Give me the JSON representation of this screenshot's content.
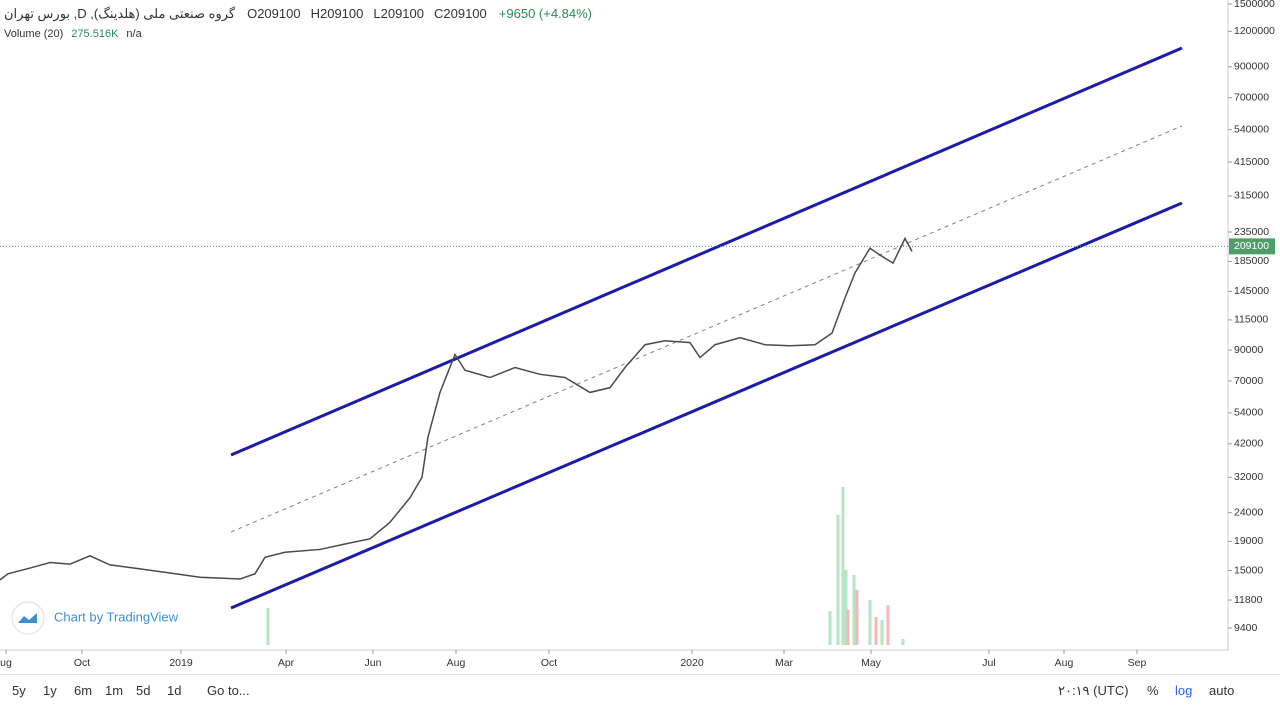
{
  "chart_data": {
    "type": "line",
    "title": "گروه صنعتی ملی (هلدینگ), D, بورس تهران",
    "ohlc": [
      {
        "label": "O",
        "value": 209100
      },
      {
        "label": "H",
        "value": 209100
      },
      {
        "label": "L",
        "value": 209100
      },
      {
        "label": "C",
        "value": 209100
      }
    ],
    "change": "+9650 (+4.84%)",
    "log_scale": true,
    "ylim": [
      7860,
      1549000
    ],
    "yticks": [
      1500000,
      1200000,
      900000,
      700000,
      540000,
      415000,
      315000,
      235000,
      185000,
      145000,
      115000,
      90000,
      70000,
      54000,
      42000,
      32000,
      24000,
      19000,
      15000,
      11800,
      9400
    ],
    "xlim": [
      0,
      307
    ],
    "xticks": [
      {
        "value": 1.5,
        "label": "ug"
      },
      {
        "value": 20.5,
        "label": "Oct"
      },
      {
        "value": 45.25,
        "label": "2019"
      },
      {
        "value": 71.5,
        "label": "Apr"
      },
      {
        "value": 93.25,
        "label": "Jun"
      },
      {
        "value": 114,
        "label": "Aug"
      },
      {
        "value": 137.25,
        "label": "Oct"
      },
      {
        "value": 173,
        "label": "2020"
      },
      {
        "value": 196,
        "label": "Mar"
      },
      {
        "value": 217.75,
        "label": "May"
      },
      {
        "value": 247.25,
        "label": "Jul"
      },
      {
        "value": 266,
        "label": "Aug"
      },
      {
        "value": 284.25,
        "label": "Sep"
      }
    ],
    "series": [
      {
        "name": "Price",
        "color": "#4a4a4a",
        "x": [
          0,
          2,
          7.5,
          12.5,
          17.5,
          22.5,
          27.5,
          35,
          42.5,
          50,
          60,
          63.75,
          66.25,
          71.25,
          80,
          86.25,
          92.5,
          97.5,
          102.5,
          105.5,
          107,
          110,
          113.75,
          116.25,
          122.5,
          128.75,
          135,
          141.25,
          147.5,
          152.5,
          156.25,
          161.25,
          166.25,
          172.5,
          175,
          178.75,
          185,
          191.25,
          197.5,
          203.75,
          208,
          211.25,
          213.75,
          217.5,
          220,
          223.25,
          226.25,
          228
        ],
        "values": [
          13900,
          14600,
          15300,
          16000,
          15800,
          16900,
          15700,
          15200,
          14700,
          14200,
          14000,
          14600,
          16700,
          17400,
          17800,
          18600,
          19400,
          22200,
          27100,
          32000,
          44400,
          63800,
          86800,
          76400,
          72000,
          78100,
          73900,
          72000,
          63800,
          66300,
          78100,
          94000,
          97100,
          95600,
          84700,
          94000,
          99600,
          94000,
          93200,
          94000,
          103300,
          137600,
          168600,
          206100,
          194800,
          182500,
          223000,
          200800
        ]
      }
    ],
    "last_price": {
      "value": 209100,
      "label": "209100",
      "color": "#4f9e6a"
    },
    "volume": {
      "label": "Volume (20)",
      "value_label": "275.516K",
      "na": "n/a",
      "ylim": [
        0,
        6000
      ],
      "x": [
        67,
        207.5,
        209.5,
        210.75,
        211.5,
        212,
        213.5,
        214.25,
        217.5,
        219,
        220.5,
        222,
        225.75
      ],
      "values": [
        1170,
        1070,
        4110,
        4990,
        2370,
        1110,
        2210,
        1740,
        1420,
        880,
        790,
        1260,
        190
      ],
      "colors": [
        "#b7e4c7",
        "#b7e4c7",
        "#b7e4c7",
        "#b7e4c7",
        "#b7e4c7",
        "#f4b6b6",
        "#b7e4c7",
        "#f4b6b6",
        "#b7e4c7",
        "#f4b6b6",
        "#b7e4c7",
        "#f4b6b6",
        "#b7e4c7"
      ]
    },
    "watermark": "Chart by TradingView"
  },
  "toolbar": {
    "ranges": [
      "5y",
      "1y",
      "6m",
      "1m",
      "5d",
      "1d"
    ],
    "goto": "Go to...",
    "time": "٢٠:١٩ (UTC)",
    "percent": "%",
    "log": "log",
    "auto": "auto"
  }
}
